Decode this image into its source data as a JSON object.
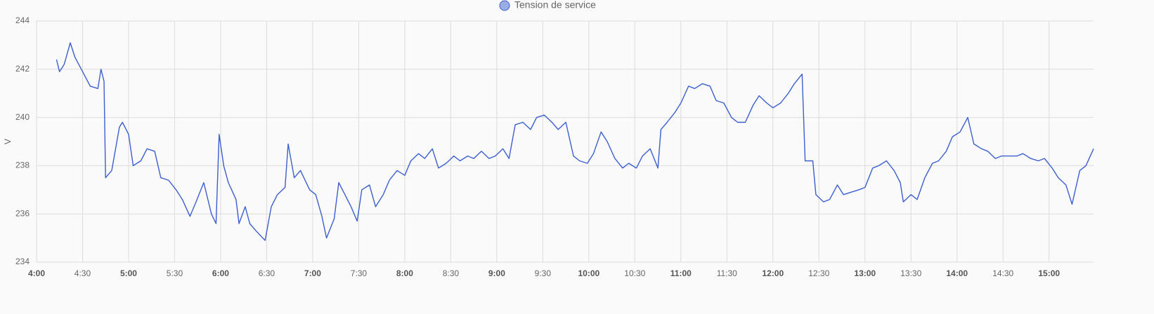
{
  "chart_data": {
    "type": "line",
    "y_label": "V",
    "x": [
      253,
      255,
      258,
      262,
      265,
      270,
      275,
      280,
      282,
      284,
      285,
      289,
      294,
      296,
      300,
      303,
      308,
      312,
      317,
      321,
      326,
      331,
      335,
      340,
      344,
      349,
      354,
      357,
      359,
      362,
      365,
      370,
      372,
      376,
      379,
      383,
      389,
      393,
      397,
      402,
      404,
      408,
      412,
      418,
      422,
      426,
      429,
      434,
      437,
      441,
      445,
      449,
      452,
      457,
      461,
      466,
      470,
      475,
      480,
      484,
      489,
      493,
      498,
      502,
      507,
      512,
      516,
      521,
      525,
      530,
      535,
      539,
      544,
      548,
      552,
      557,
      562,
      566,
      571,
      576,
      580,
      585,
      590,
      594,
      599,
      603,
      608,
      612,
      617,
      622,
      626,
      631,
      635,
      640,
      645,
      647,
      651,
      656,
      660,
      665,
      669,
      674,
      679,
      683,
      688,
      693,
      697,
      702,
      707,
      711,
      716,
      720,
      725,
      730,
      734,
      739,
      741,
      746,
      748,
      753,
      757,
      762,
      766,
      771,
      776,
      780,
      785,
      789,
      794,
      799,
      803,
      805,
      810,
      814,
      819,
      824,
      828,
      833,
      837,
      842,
      847,
      851,
      856,
      860,
      865,
      869,
      874,
      879,
      883,
      888,
      893,
      897,
      902,
      906,
      911,
      915,
      920,
      924,
      929
    ],
    "series": [
      {
        "name": "Tension de service",
        "color": "#3b5fcf",
        "values": [
          242.4,
          241.9,
          242.2,
          243.1,
          242.5,
          241.9,
          241.3,
          241.2,
          242.0,
          241.5,
          237.5,
          237.8,
          239.6,
          239.8,
          239.3,
          238.0,
          238.2,
          238.7,
          238.6,
          237.5,
          237.4,
          237.0,
          236.6,
          235.9,
          236.5,
          237.3,
          236.0,
          235.6,
          239.3,
          238.0,
          237.3,
          236.6,
          235.6,
          236.3,
          235.6,
          235.3,
          234.9,
          236.3,
          236.8,
          237.1,
          238.9,
          237.5,
          237.8,
          237.0,
          236.8,
          235.9,
          235.0,
          235.8,
          237.3,
          236.8,
          236.3,
          235.7,
          237.0,
          237.2,
          236.3,
          236.8,
          237.4,
          237.8,
          237.6,
          238.2,
          238.5,
          238.3,
          238.7,
          237.9,
          238.1,
          238.4,
          238.2,
          238.4,
          238.3,
          238.6,
          238.3,
          238.4,
          238.7,
          238.3,
          239.7,
          239.8,
          239.5,
          240.0,
          240.1,
          239.8,
          239.5,
          239.8,
          238.4,
          238.2,
          238.1,
          238.5,
          239.4,
          239.0,
          238.3,
          237.9,
          238.1,
          237.9,
          238.4,
          238.7,
          237.9,
          239.5,
          239.8,
          240.2,
          240.6,
          241.3,
          241.2,
          241.4,
          241.3,
          240.7,
          240.6,
          240.0,
          239.8,
          239.8,
          240.5,
          240.9,
          240.6,
          240.4,
          240.6,
          241.0,
          241.4,
          241.8,
          238.2,
          238.2,
          236.8,
          236.5,
          236.6,
          237.2,
          236.8,
          236.9,
          237.0,
          237.1,
          237.9,
          238.0,
          238.2,
          237.8,
          237.3,
          236.5,
          236.8,
          236.6,
          237.5,
          238.1,
          238.2,
          238.6,
          239.2,
          239.4,
          240.0,
          238.9,
          238.7,
          238.6,
          238.3,
          238.4,
          238.4,
          238.4,
          238.5,
          238.3,
          238.2,
          238.3,
          237.9,
          237.5,
          237.2,
          236.4,
          237.8,
          238.0,
          238.7
        ]
      }
    ],
    "xlim": [
      240,
      929
    ],
    "xticks": [
      {
        "value": 240,
        "label": "4:00"
      },
      {
        "value": 270,
        "label": "4:30"
      },
      {
        "value": 300,
        "label": "5:00"
      },
      {
        "value": 330,
        "label": "5:30"
      },
      {
        "value": 360,
        "label": "6:00"
      },
      {
        "value": 390,
        "label": "6:30"
      },
      {
        "value": 420,
        "label": "7:00"
      },
      {
        "value": 450,
        "label": "7:30"
      },
      {
        "value": 480,
        "label": "8:00"
      },
      {
        "value": 510,
        "label": "8:30"
      },
      {
        "value": 540,
        "label": "9:00"
      },
      {
        "value": 570,
        "label": "9:30"
      },
      {
        "value": 600,
        "label": "10:00"
      },
      {
        "value": 630,
        "label": "10:30"
      },
      {
        "value": 660,
        "label": "11:00"
      },
      {
        "value": 690,
        "label": "11:30"
      },
      {
        "value": 720,
        "label": "12:00"
      },
      {
        "value": 750,
        "label": "12:30"
      },
      {
        "value": 780,
        "label": "13:00"
      },
      {
        "value": 810,
        "label": "13:30"
      },
      {
        "value": 840,
        "label": "14:00"
      },
      {
        "value": 870,
        "label": "14:30"
      },
      {
        "value": 900,
        "label": "15:00"
      }
    ],
    "ylim": [
      234,
      244
    ],
    "yticks": [
      234,
      236,
      238,
      240,
      242,
      244
    ],
    "grid": true,
    "legend": "top"
  }
}
